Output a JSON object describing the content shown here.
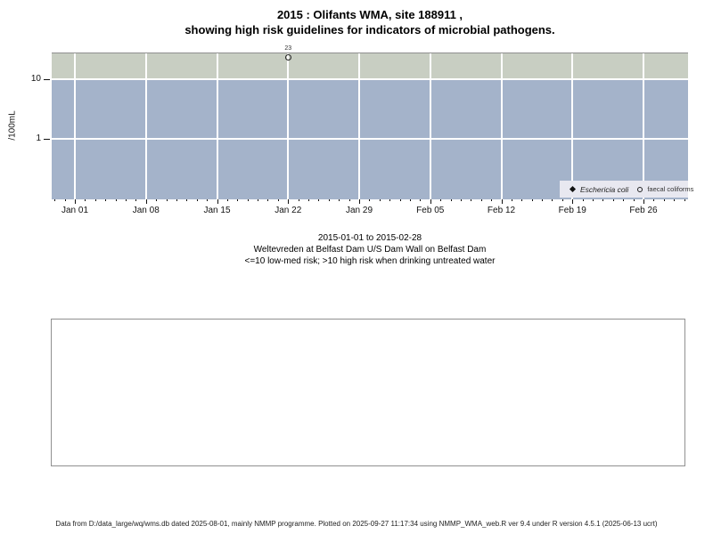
{
  "title": {
    "line1": "2015 : Olifants WMA, site 188911 ,",
    "line2": "showing high risk guidelines for indicators of microbial pathogens."
  },
  "chart_data": {
    "type": "scatter",
    "y_scale": "log",
    "ylabel": "/100mL",
    "ylim_approx": [
      0.1,
      28
    ],
    "threshold": 10,
    "x_range": "2015-01-01 to 2015-02-28",
    "x_minor_ticks": "daily",
    "x_tick_labels": [
      "Jan 01",
      "Jan 08",
      "Jan 15",
      "Jan 22",
      "Jan 29",
      "Feb 05",
      "Feb 12",
      "Feb 19",
      "Feb 26"
    ],
    "y_ticks": [
      {
        "label": "10",
        "value": 10
      },
      {
        "label": "1",
        "value": 1
      }
    ],
    "bands": [
      {
        "name": "high-risk",
        "rule": ">10 high risk",
        "color": "#c8cec2"
      },
      {
        "name": "low-med-risk",
        "rule": "<=10 low-med risk",
        "color": "#a4b3ca"
      }
    ],
    "grid": "on",
    "legend_position": "bottom-right",
    "series": [
      {
        "name": "Eschericia coli",
        "marker": "filled-diamond",
        "points": []
      },
      {
        "name": "faecal coliforms",
        "marker": "open-circle",
        "points": [
          {
            "date": "2015-01-22",
            "day_offset": 21,
            "value": 23,
            "label": "23"
          }
        ]
      }
    ]
  },
  "subtitle": {
    "line1": "2015-01-01 to 2015-02-28",
    "line2": "Weltevreden at Belfast Dam U/S Dam Wall on Belfast Dam",
    "line3": "<=10 low-med risk; >10 high risk when drinking untreated water"
  },
  "footer": "Data from D:/data_large/wq/wms.db dated 2025-08-01, mainly NMMP programme. Plotted on 2025-09-27 11:17:34 using NMMP_WMA_web.R ver 9.4 under R version 4.5.1 (2025-06-13 ucrt)"
}
